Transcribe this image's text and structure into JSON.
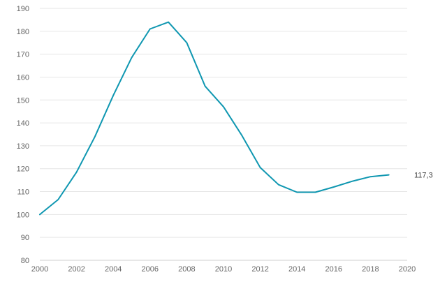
{
  "chart_data": {
    "type": "line",
    "title": "",
    "xlabel": "",
    "ylabel": "",
    "xlim": [
      2000,
      2020
    ],
    "ylim": [
      80,
      190
    ],
    "x_ticks": [
      2000,
      2002,
      2004,
      2006,
      2008,
      2010,
      2012,
      2014,
      2016,
      2018,
      2020
    ],
    "y_ticks": [
      80,
      90,
      100,
      110,
      120,
      130,
      140,
      150,
      160,
      170,
      180,
      190
    ],
    "grid": "horizontal",
    "series": [
      {
        "color": "#0f97b1",
        "points": [
          [
            2000,
            100
          ],
          [
            2001,
            106.5
          ],
          [
            2002,
            118.5
          ],
          [
            2003,
            134
          ],
          [
            2004,
            152
          ],
          [
            2005,
            168.5
          ],
          [
            2006,
            181
          ],
          [
            2007,
            184
          ],
          [
            2008,
            175
          ],
          [
            2009,
            156
          ],
          [
            2010,
            147
          ],
          [
            2011,
            134.5
          ],
          [
            2012,
            120.5
          ],
          [
            2013,
            113
          ],
          [
            2014,
            109.7
          ],
          [
            2015,
            109.7
          ],
          [
            2016,
            112
          ],
          [
            2017,
            114.5
          ],
          [
            2018,
            116.5
          ],
          [
            2019,
            117.3
          ]
        ]
      }
    ],
    "end_label": "117,3"
  }
}
